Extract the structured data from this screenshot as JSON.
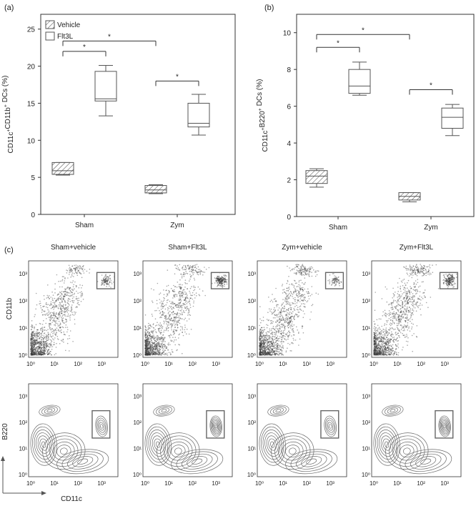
{
  "panels": {
    "a": "(a)",
    "b": "(b)",
    "c": "(c)"
  },
  "colors": {
    "axis": "#333333",
    "box_edge": "#555555",
    "facs_dot": "#3a3a3a",
    "contour": "#6a6a6a",
    "gate": "#666666",
    "background": "#ffffff"
  },
  "chart_data": [
    {
      "type": "box",
      "panel": "(a)",
      "ylabel": "CD11c+CD11b+ DCs (%)",
      "categories": [
        "Sham",
        "Zym"
      ],
      "ylim": [
        0,
        27
      ],
      "yticks": [
        "0",
        "5",
        "10",
        "15",
        "20",
        "25"
      ],
      "legend": {
        "placement": "top-left",
        "entries": [
          "Vehicle",
          "Flt3L"
        ]
      },
      "series": [
        {
          "name": "Vehicle",
          "pattern": "hatched",
          "boxes": [
            {
              "category": "Sham",
              "min": 5.3,
              "q1": 5.4,
              "median": 5.9,
              "q3": 7.0,
              "max": 7.0
            },
            {
              "category": "Zym",
              "min": 2.8,
              "q1": 2.9,
              "median": 3.3,
              "q3": 3.9,
              "max": 4.0
            }
          ]
        },
        {
          "name": "Flt3L",
          "pattern": "open",
          "boxes": [
            {
              "category": "Sham",
              "min": 13.3,
              "q1": 15.3,
              "median": 15.6,
              "q3": 19.3,
              "max": 20.1
            },
            {
              "category": "Zym",
              "min": 10.7,
              "q1": 11.8,
              "median": 12.3,
              "q3": 15.0,
              "max": 16.2
            }
          ]
        }
      ],
      "significance": [
        {
          "label": "*",
          "between": [
            "Sham Vehicle",
            "Sham Flt3L"
          ]
        },
        {
          "label": "*",
          "between": [
            "Sham Vehicle",
            "Zym Vehicle"
          ]
        },
        {
          "label": "*",
          "between": [
            "Zym Vehicle",
            "Zym Flt3L"
          ]
        }
      ]
    },
    {
      "type": "box",
      "panel": "(b)",
      "ylabel": "CD11c+B220+ DCs (%)",
      "categories": [
        "Sham",
        "Zym"
      ],
      "ylim": [
        0,
        11
      ],
      "yticks": [
        "0",
        "2",
        "4",
        "6",
        "8",
        "10"
      ],
      "series": [
        {
          "name": "Vehicle",
          "pattern": "hatched",
          "boxes": [
            {
              "category": "Sham",
              "min": 1.6,
              "q1": 1.8,
              "median": 2.2,
              "q3": 2.5,
              "max": 2.6
            },
            {
              "category": "Zym",
              "min": 0.8,
              "q1": 0.9,
              "median": 1.1,
              "q3": 1.3,
              "max": 1.3
            }
          ]
        },
        {
          "name": "Flt3L",
          "pattern": "open",
          "boxes": [
            {
              "category": "Sham",
              "min": 6.6,
              "q1": 6.7,
              "median": 7.1,
              "q3": 8.0,
              "max": 8.4
            },
            {
              "category": "Zym",
              "min": 4.4,
              "q1": 4.8,
              "median": 5.4,
              "q3": 5.9,
              "max": 6.1
            }
          ]
        }
      ],
      "significance": [
        {
          "label": "*",
          "between": [
            "Sham Vehicle",
            "Sham Flt3L"
          ]
        },
        {
          "label": "*",
          "between": [
            "Sham Vehicle",
            "Zym Vehicle"
          ]
        },
        {
          "label": "*",
          "between": [
            "Zym Vehicle",
            "Zym Flt3L"
          ]
        }
      ]
    },
    {
      "type": "scatter",
      "panel": "(c) dot plots",
      "xlabel": "CD11c",
      "ylabel": "CD11b",
      "scale": "log",
      "xticks": [
        "10⁰",
        "10¹",
        "10²",
        "10³"
      ],
      "yticks": [
        "10⁰",
        "10¹",
        "10²",
        "10³"
      ],
      "titles": [
        "Sham+vehicle",
        "Sham+Flt3L",
        "Zym+vehicle",
        "Zym+Flt3L"
      ],
      "gate": {
        "x_range_log": [
          2.8,
          3.55
        ],
        "y_range_log": [
          2.45,
          3.05
        ]
      }
    },
    {
      "type": "contour",
      "panel": "(c) contour plots",
      "xlabel": "CD11c",
      "ylabel": "B220",
      "scale": "log",
      "xticks": [
        "10⁰",
        "10¹",
        "10²",
        "10³"
      ],
      "yticks": [
        "10⁰",
        "10¹",
        "10²",
        "10³"
      ],
      "gate": {
        "x_range_log": [
          2.6,
          3.35
        ],
        "y_range_log": [
          1.4,
          2.45
        ]
      }
    }
  ]
}
